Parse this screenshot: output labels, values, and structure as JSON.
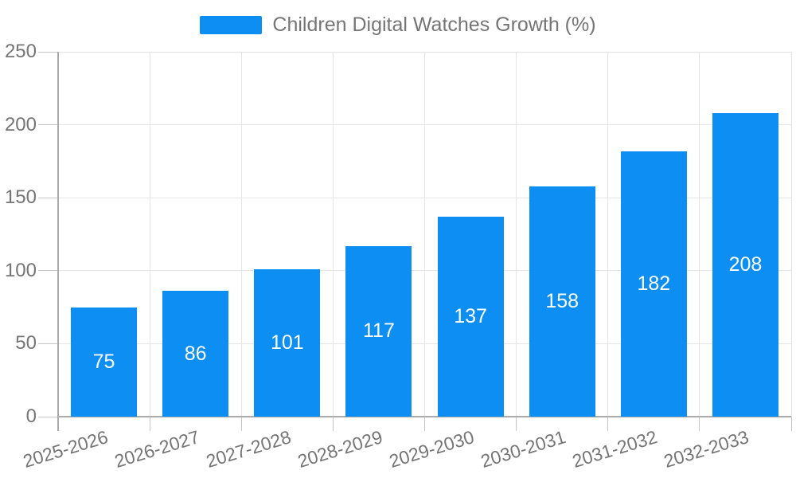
{
  "legend": {
    "label": "Children Digital Watches Growth (%)"
  },
  "chart_data": {
    "type": "bar",
    "title": "Children Digital Watches Growth (%)",
    "categories": [
      "2025-2026",
      "2026-2027",
      "2027-2028",
      "2028-2029",
      "2029-2030",
      "2030-2031",
      "2031-2032",
      "2032-2033"
    ],
    "values": [
      75,
      86,
      101,
      117,
      137,
      158,
      182,
      208
    ],
    "series": [
      {
        "name": "Children Digital Watches Growth (%)",
        "values": [
          75,
          86,
          101,
          117,
          137,
          158,
          182,
          208
        ]
      }
    ],
    "xlabel": "",
    "ylabel": "",
    "ylim": [
      0,
      250
    ],
    "yticks": [
      0,
      50,
      100,
      150,
      200,
      250
    ],
    "grid": true,
    "legend_position": "top-center",
    "data_labels": "inside-center",
    "x_label_rotation_deg": -17
  },
  "colors": {
    "bar": "#0d8ef2",
    "grid": "#e5e5e5",
    "axis": "#ababab",
    "tick": "#c6c6c6",
    "text": "#757575",
    "bar_label": "#ffffff",
    "background": "#ffffff"
  }
}
